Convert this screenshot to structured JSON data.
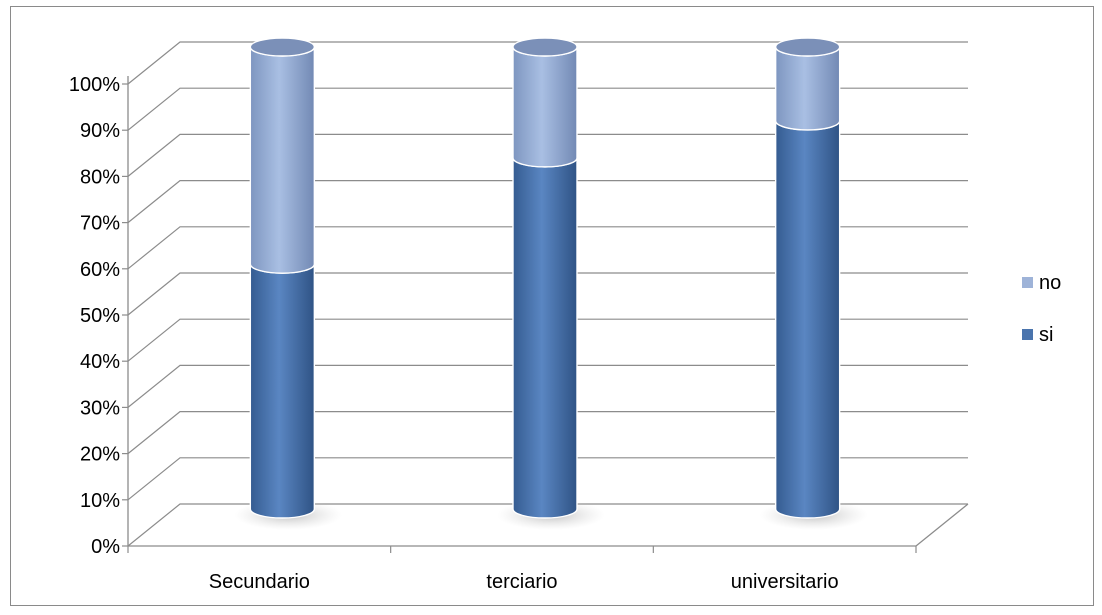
{
  "chart_data": {
    "type": "bar",
    "stacked": true,
    "percent_stacked": true,
    "style": "3d-cylinder",
    "categories": [
      "Secundario",
      "terciario",
      "universitario"
    ],
    "series": [
      {
        "name": "si",
        "values": [
          53,
          76,
          84
        ],
        "color": "#4a74ad"
      },
      {
        "name": "no",
        "values": [
          47,
          24,
          16
        ],
        "color": "#9eb3d8"
      }
    ],
    "y_tick_labels": [
      "0%",
      "10%",
      "20%",
      "30%",
      "40%",
      "50%",
      "60%",
      "70%",
      "80%",
      "90%",
      "100%"
    ],
    "ylim": [
      0,
      100
    ],
    "grid": true,
    "legend": {
      "position": "right",
      "order": [
        "no",
        "si"
      ]
    },
    "title": "",
    "xlabel": "",
    "ylabel": ""
  }
}
